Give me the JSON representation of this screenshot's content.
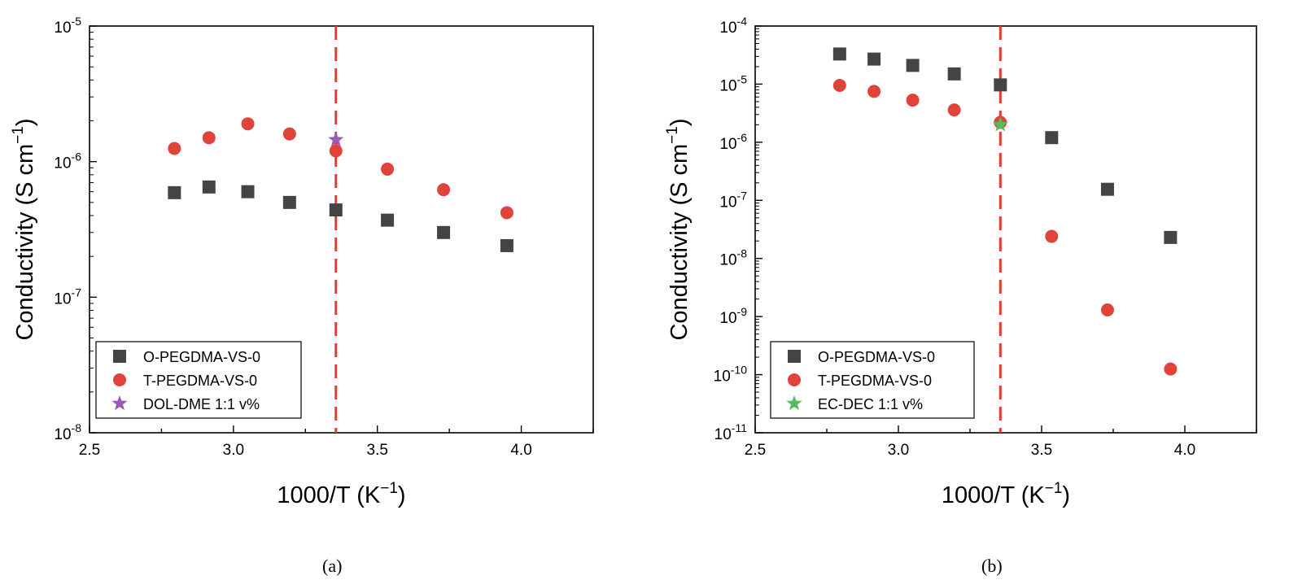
{
  "chart_data": [
    {
      "type": "scatter",
      "panel_label": "(a)",
      "xlabel": "1000/T (K",
      "xlabel_sup": "−1",
      "xlabel_close": ")",
      "ylabel": "Conductivity (S cm",
      "ylabel_sup": "−1",
      "ylabel_close": ")",
      "xlim": [
        2.5,
        4.25
      ],
      "ylim_log10": [
        -8,
        -5
      ],
      "yscale": "log",
      "xticks": [
        2.5,
        3.0,
        3.5,
        4.0
      ],
      "xtick_labels": [
        "2.5",
        "3.0",
        "3.5",
        "4.0"
      ],
      "yticks_exp": [
        -8,
        -7,
        -6,
        -5
      ],
      "ytick_base": "10",
      "ytick_exps": [
        "-8",
        "-7",
        "-6",
        "-5"
      ],
      "vline_x": 3.356,
      "vline_color": "#e8392f",
      "legend_position": "bottom-left",
      "series": [
        {
          "name": "O-PEGDMA-VS-0",
          "marker": "square",
          "color": "#444444",
          "x": [
            2.795,
            2.915,
            3.05,
            3.195,
            3.356,
            3.535,
            3.73,
            3.95
          ],
          "y": [
            5.9e-07,
            6.5e-07,
            6e-07,
            5e-07,
            4.4e-07,
            3.7e-07,
            3e-07,
            2.4e-07
          ]
        },
        {
          "name": "T-PEGDMA-VS-0",
          "marker": "circle",
          "color": "#e0433a",
          "x": [
            2.795,
            2.915,
            3.05,
            3.195,
            3.356,
            3.535,
            3.73,
            3.95
          ],
          "y": [
            1.25e-06,
            1.5e-06,
            1.9e-06,
            1.6e-06,
            1.2e-06,
            8.8e-07,
            6.2e-07,
            4.2e-07
          ]
        },
        {
          "name": "DOL-DME 1:1 v%",
          "marker": "star",
          "color": "#9b59b6",
          "x": [
            3.356
          ],
          "y": [
            1.45e-06
          ]
        }
      ]
    },
    {
      "type": "scatter",
      "panel_label": "(b)",
      "xlabel": "1000/T (K",
      "xlabel_sup": "−1",
      "xlabel_close": ")",
      "ylabel": "Conductivity (S cm",
      "ylabel_sup": "−1",
      "ylabel_close": ")",
      "xlim": [
        2.5,
        4.25
      ],
      "ylim_log10": [
        -11,
        -4
      ],
      "yscale": "log",
      "xticks": [
        2.5,
        3.0,
        3.5,
        4.0
      ],
      "xtick_labels": [
        "2.5",
        "3.0",
        "3.5",
        "4.0"
      ],
      "yticks_exp": [
        -11,
        -10,
        -9,
        -8,
        -7,
        -6,
        -5,
        -4
      ],
      "ytick_base": "10",
      "ytick_exps": [
        "-11",
        "-10",
        "-9",
        "-8",
        "-7",
        "-6",
        "-5",
        "-4"
      ],
      "vline_x": 3.356,
      "vline_color": "#e8392f",
      "legend_position": "bottom-left",
      "series": [
        {
          "name": "O-PEGDMA-VS-0",
          "marker": "square",
          "color": "#444444",
          "x": [
            2.795,
            2.915,
            3.05,
            3.195,
            3.356,
            3.535,
            3.73,
            3.95
          ],
          "y": [
            3.3e-05,
            2.7e-05,
            2.1e-05,
            1.5e-05,
            9.7e-06,
            1.2e-06,
            1.55e-07,
            2.3e-08
          ]
        },
        {
          "name": "T-PEGDMA-VS-0",
          "marker": "circle",
          "color": "#e0433a",
          "x": [
            2.795,
            2.915,
            3.05,
            3.195,
            3.356,
            3.535,
            3.73,
            3.95
          ],
          "y": [
            9.5e-06,
            7.5e-06,
            5.3e-06,
            3.6e-06,
            2.2e-06,
            2.4e-08,
            1.3e-09,
            1.25e-10
          ]
        },
        {
          "name": "EC-DEC 1:1 v%",
          "marker": "star",
          "color": "#5cb85c",
          "x": [
            3.356
          ],
          "y": [
            2e-06
          ]
        }
      ]
    }
  ]
}
